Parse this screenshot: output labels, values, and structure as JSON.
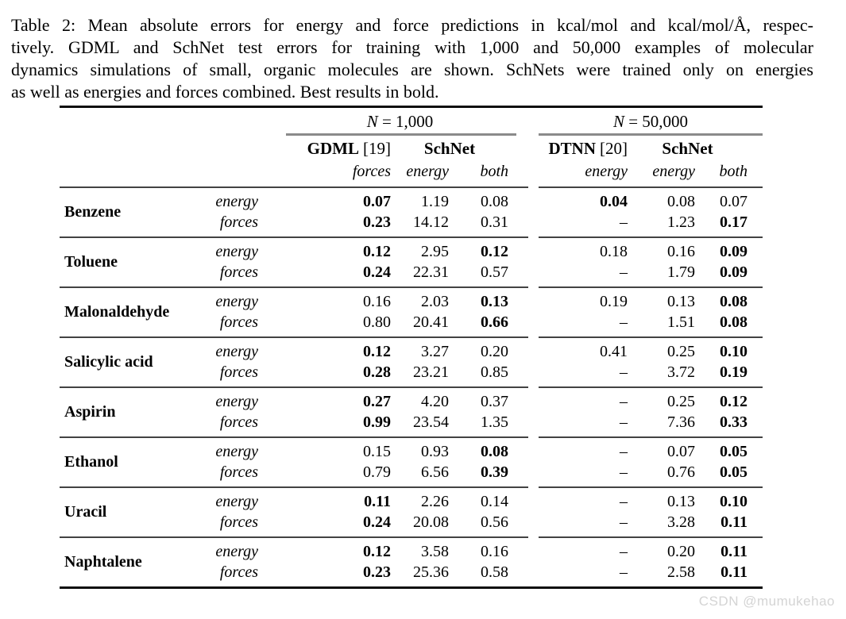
{
  "caption": {
    "lines": [
      "Table 2: Mean absolute errors for energy and force predictions in kcal/mol and kcal/mol/Å, respec-",
      "tively. GDML and SchNet test errors for training with 1,000 and 50,000 examples of molecular",
      "dynamics simulations of small, organic molecules are shown. SchNets were trained only on energies",
      "as well as energies and forces combined. Best results in bold."
    ]
  },
  "table": {
    "groups": [
      {
        "n_label_var": "N",
        "n_label_rest": " = 1,000",
        "method1_name": "GDML",
        "method1_ref": "[19]",
        "method2_name": "SchNet",
        "subheads": [
          "forces",
          "energy",
          "both"
        ]
      },
      {
        "n_label_var": "N",
        "n_label_rest": " = 50,000",
        "method1_name": "DTNN",
        "method1_ref": "[20]",
        "method2_name": "SchNet",
        "subheads": [
          "energy",
          "energy",
          "both"
        ]
      }
    ],
    "rows": [
      {
        "molecule": "Benzene",
        "lines": [
          {
            "type": "energy",
            "g1": [
              {
                "v": "0.07",
                "b": true
              },
              {
                "v": "1.19",
                "b": false
              },
              {
                "v": "0.08",
                "b": false
              }
            ],
            "g2": [
              {
                "v": "0.04",
                "b": true
              },
              {
                "v": "0.08",
                "b": false
              },
              {
                "v": "0.07",
                "b": false
              }
            ]
          },
          {
            "type": "forces",
            "g1": [
              {
                "v": "0.23",
                "b": true
              },
              {
                "v": "14.12",
                "b": false
              },
              {
                "v": "0.31",
                "b": false
              }
            ],
            "g2": [
              {
                "v": "–",
                "b": false
              },
              {
                "v": "1.23",
                "b": false
              },
              {
                "v": "0.17",
                "b": true
              }
            ]
          }
        ]
      },
      {
        "molecule": "Toluene",
        "lines": [
          {
            "type": "energy",
            "g1": [
              {
                "v": "0.12",
                "b": true
              },
              {
                "v": "2.95",
                "b": false
              },
              {
                "v": "0.12",
                "b": true
              }
            ],
            "g2": [
              {
                "v": "0.18",
                "b": false
              },
              {
                "v": "0.16",
                "b": false
              },
              {
                "v": "0.09",
                "b": true
              }
            ]
          },
          {
            "type": "forces",
            "g1": [
              {
                "v": "0.24",
                "b": true
              },
              {
                "v": "22.31",
                "b": false
              },
              {
                "v": "0.57",
                "b": false
              }
            ],
            "g2": [
              {
                "v": "–",
                "b": false
              },
              {
                "v": "1.79",
                "b": false
              },
              {
                "v": "0.09",
                "b": true
              }
            ]
          }
        ]
      },
      {
        "molecule": "Malonaldehyde",
        "lines": [
          {
            "type": "energy",
            "g1": [
              {
                "v": "0.16",
                "b": false
              },
              {
                "v": "2.03",
                "b": false
              },
              {
                "v": "0.13",
                "b": true
              }
            ],
            "g2": [
              {
                "v": "0.19",
                "b": false
              },
              {
                "v": "0.13",
                "b": false
              },
              {
                "v": "0.08",
                "b": true
              }
            ]
          },
          {
            "type": "forces",
            "g1": [
              {
                "v": "0.80",
                "b": false
              },
              {
                "v": "20.41",
                "b": false
              },
              {
                "v": "0.66",
                "b": true
              }
            ],
            "g2": [
              {
                "v": "–",
                "b": false
              },
              {
                "v": "1.51",
                "b": false
              },
              {
                "v": "0.08",
                "b": true
              }
            ]
          }
        ]
      },
      {
        "molecule": "Salicylic acid",
        "lines": [
          {
            "type": "energy",
            "g1": [
              {
                "v": "0.12",
                "b": true
              },
              {
                "v": "3.27",
                "b": false
              },
              {
                "v": "0.20",
                "b": false
              }
            ],
            "g2": [
              {
                "v": "0.41",
                "b": false
              },
              {
                "v": "0.25",
                "b": false
              },
              {
                "v": "0.10",
                "b": true
              }
            ]
          },
          {
            "type": "forces",
            "g1": [
              {
                "v": "0.28",
                "b": true
              },
              {
                "v": "23.21",
                "b": false
              },
              {
                "v": "0.85",
                "b": false
              }
            ],
            "g2": [
              {
                "v": "–",
                "b": false
              },
              {
                "v": "3.72",
                "b": false
              },
              {
                "v": "0.19",
                "b": true
              }
            ]
          }
        ]
      },
      {
        "molecule": "Aspirin",
        "lines": [
          {
            "type": "energy",
            "g1": [
              {
                "v": "0.27",
                "b": true
              },
              {
                "v": "4.20",
                "b": false
              },
              {
                "v": "0.37",
                "b": false
              }
            ],
            "g2": [
              {
                "v": "–",
                "b": false
              },
              {
                "v": "0.25",
                "b": false
              },
              {
                "v": "0.12",
                "b": true
              }
            ]
          },
          {
            "type": "forces",
            "g1": [
              {
                "v": "0.99",
                "b": true
              },
              {
                "v": "23.54",
                "b": false
              },
              {
                "v": "1.35",
                "b": false
              }
            ],
            "g2": [
              {
                "v": "–",
                "b": false
              },
              {
                "v": "7.36",
                "b": false
              },
              {
                "v": "0.33",
                "b": true
              }
            ]
          }
        ]
      },
      {
        "molecule": "Ethanol",
        "lines": [
          {
            "type": "energy",
            "g1": [
              {
                "v": "0.15",
                "b": false
              },
              {
                "v": "0.93",
                "b": false
              },
              {
                "v": "0.08",
                "b": true
              }
            ],
            "g2": [
              {
                "v": "–",
                "b": false
              },
              {
                "v": "0.07",
                "b": false
              },
              {
                "v": "0.05",
                "b": true
              }
            ]
          },
          {
            "type": "forces",
            "g1": [
              {
                "v": "0.79",
                "b": false
              },
              {
                "v": "6.56",
                "b": false
              },
              {
                "v": "0.39",
                "b": true
              }
            ],
            "g2": [
              {
                "v": "–",
                "b": false
              },
              {
                "v": "0.76",
                "b": false
              },
              {
                "v": "0.05",
                "b": true
              }
            ]
          }
        ]
      },
      {
        "molecule": "Uracil",
        "lines": [
          {
            "type": "energy",
            "g1": [
              {
                "v": "0.11",
                "b": true
              },
              {
                "v": "2.26",
                "b": false
              },
              {
                "v": "0.14",
                "b": false
              }
            ],
            "g2": [
              {
                "v": "–",
                "b": false
              },
              {
                "v": "0.13",
                "b": false
              },
              {
                "v": "0.10",
                "b": true
              }
            ]
          },
          {
            "type": "forces",
            "g1": [
              {
                "v": "0.24",
                "b": true
              },
              {
                "v": "20.08",
                "b": false
              },
              {
                "v": "0.56",
                "b": false
              }
            ],
            "g2": [
              {
                "v": "–",
                "b": false
              },
              {
                "v": "3.28",
                "b": false
              },
              {
                "v": "0.11",
                "b": true
              }
            ]
          }
        ]
      },
      {
        "molecule": "Naphtalene",
        "lines": [
          {
            "type": "energy",
            "g1": [
              {
                "v": "0.12",
                "b": true
              },
              {
                "v": "3.58",
                "b": false
              },
              {
                "v": "0.16",
                "b": false
              }
            ],
            "g2": [
              {
                "v": "–",
                "b": false
              },
              {
                "v": "0.20",
                "b": false
              },
              {
                "v": "0.11",
                "b": true
              }
            ]
          },
          {
            "type": "forces",
            "g1": [
              {
                "v": "0.23",
                "b": true
              },
              {
                "v": "25.36",
                "b": false
              },
              {
                "v": "0.58",
                "b": false
              }
            ],
            "g2": [
              {
                "v": "–",
                "b": false
              },
              {
                "v": "2.58",
                "b": false
              },
              {
                "v": "0.11",
                "b": true
              }
            ]
          }
        ]
      }
    ]
  },
  "colors": {
    "rule_dark": "#0d0d0d",
    "rule_mid": "#424242",
    "rule_gray": "#8a8a8a",
    "watermark_gray": "#d4d4d4"
  },
  "watermark": "CSDN @mumukehao"
}
